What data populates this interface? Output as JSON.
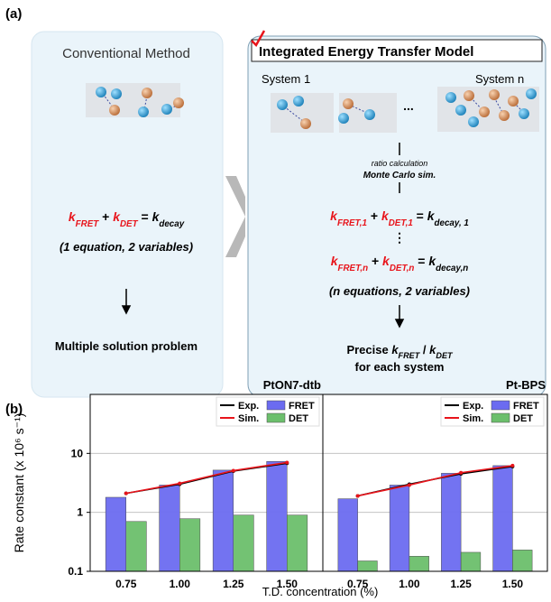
{
  "panel_a": {
    "label": "(a)",
    "conventional": {
      "title": "Conventional Method",
      "equation": [
        {
          "text": "k",
          "sub": "FRET",
          "color": "#e8141b"
        },
        {
          "text": " + "
        },
        {
          "text": "k",
          "sub": "DET",
          "color": "#e8141b"
        },
        {
          "text": " = "
        },
        {
          "text": "k",
          "sub": "decay"
        }
      ],
      "note": "(1 equation, 2 variables)",
      "result": "Multiple solution problem"
    },
    "integrated": {
      "title": "Integrated Energy Transfer Model",
      "system_1": "System 1",
      "system_n": "System n",
      "ellipsis": "...",
      "method_1": "ratio calculation",
      "method_2": "Monte Carlo sim.",
      "equation_1": [
        {
          "text": "k",
          "sub": "FRET,1",
          "color": "#e8141b"
        },
        {
          "text": " + "
        },
        {
          "text": "k",
          "sub": "DET,1",
          "color": "#e8141b"
        },
        {
          "text": " = "
        },
        {
          "text": "k",
          "sub": "decay, 1"
        }
      ],
      "vdots": "⋮",
      "equation_n": [
        {
          "text": "k",
          "sub": "FRET,n",
          "color": "#e8141b"
        },
        {
          "text": " + "
        },
        {
          "text": "k",
          "sub": "DET,n",
          "color": "#e8141b"
        },
        {
          "text": " = "
        },
        {
          "text": "k",
          "sub": "decay,n"
        }
      ],
      "note": "(n equations, 2 variables)",
      "result_1": [
        {
          "text": "Precise "
        },
        {
          "text": "k",
          "sub": "FRET"
        },
        {
          "text": " / "
        },
        {
          "text": "k",
          "sub": "DET"
        }
      ],
      "result_2": "for each system"
    }
  },
  "panel_b": {
    "label": "(b)",
    "ylabel": "Rate constant (x 10⁶ s⁻¹)",
    "xlabel": "T.D. concentration (%)"
  },
  "chart_data": [
    {
      "type": "bar",
      "title": "PtON7-dtb",
      "categories": [
        "0.75",
        "1.00",
        "1.25",
        "1.50"
      ],
      "series": [
        {
          "name": "Exp.",
          "type": "line",
          "color": "#000000",
          "values": [
            2.1,
            3.0,
            5.0,
            6.8
          ]
        },
        {
          "name": "Sim.",
          "type": "line",
          "color": "#e8141b",
          "values": [
            2.1,
            3.1,
            5.1,
            7.0
          ]
        },
        {
          "name": "FRET",
          "type": "bar",
          "color": "#6b6bf0",
          "values": [
            1.8,
            2.9,
            5.2,
            7.3
          ]
        },
        {
          "name": "DET",
          "type": "bar",
          "color": "#6cbf6c",
          "values": [
            0.7,
            0.78,
            0.9,
            0.9
          ]
        }
      ],
      "ylim": [
        0.1,
        100
      ],
      "yticks": [
        0.1,
        1,
        10
      ],
      "log_scale": true,
      "grid": true,
      "legend": "upper right"
    },
    {
      "type": "bar",
      "title": "Pt-BPS",
      "categories": [
        "0.75",
        "1.00",
        "1.25",
        "1.50"
      ],
      "series": [
        {
          "name": "Exp.",
          "type": "line",
          "color": "#000000",
          "values": [
            1.9,
            3.0,
            4.5,
            6.0
          ]
        },
        {
          "name": "Sim.",
          "type": "line",
          "color": "#e8141b",
          "values": [
            1.9,
            2.9,
            4.7,
            6.2
          ]
        },
        {
          "name": "FRET",
          "type": "bar",
          "color": "#6b6bf0",
          "values": [
            1.7,
            2.9,
            4.6,
            6.2
          ]
        },
        {
          "name": "DET",
          "type": "bar",
          "color": "#6cbf6c",
          "values": [
            0.15,
            0.18,
            0.21,
            0.23
          ]
        }
      ],
      "ylim": [
        0.1,
        100
      ],
      "yticks": [
        0.1,
        1,
        10
      ],
      "log_scale": true,
      "grid": true,
      "legend": "upper right"
    }
  ]
}
